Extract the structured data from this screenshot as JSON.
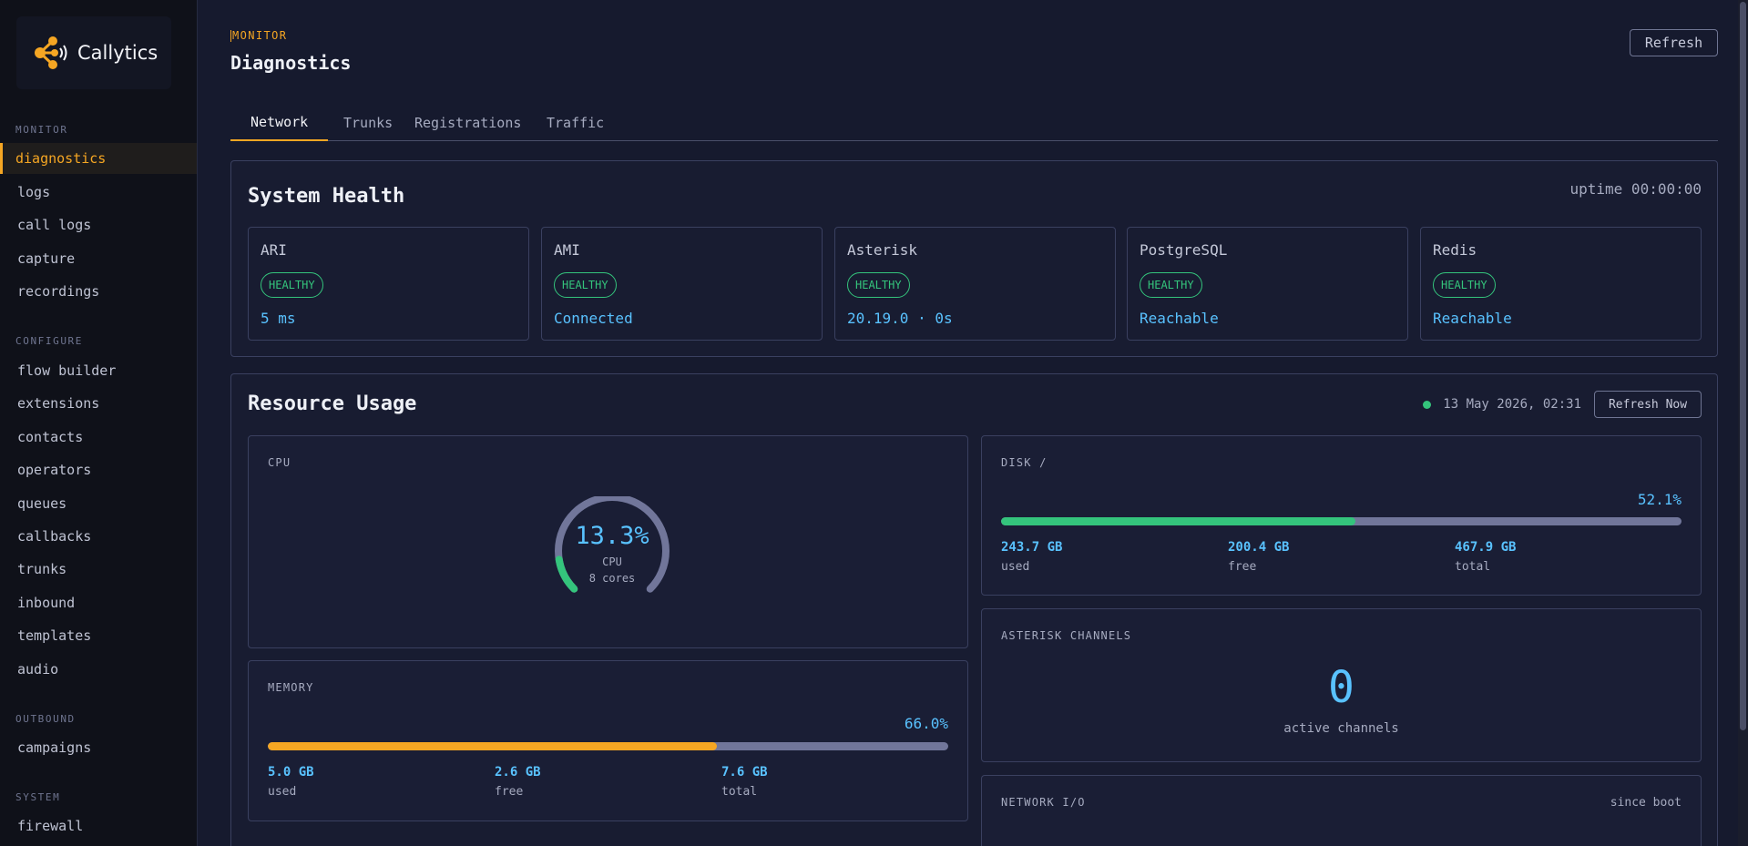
{
  "brand": {
    "name": "Callytics"
  },
  "sidebar": {
    "sections": [
      {
        "label": "MONITOR",
        "items": [
          "diagnostics",
          "logs",
          "call logs",
          "capture",
          "recordings"
        ]
      },
      {
        "label": "CONFIGURE",
        "items": [
          "flow builder",
          "extensions",
          "contacts",
          "operators",
          "queues",
          "callbacks",
          "trunks",
          "inbound",
          "templates",
          "audio"
        ]
      },
      {
        "label": "OUTBOUND",
        "items": [
          "campaigns"
        ]
      },
      {
        "label": "SYSTEM",
        "items": [
          "firewall"
        ]
      }
    ],
    "active": "diagnostics"
  },
  "header": {
    "eyebrow": "MONITOR",
    "title": "Diagnostics",
    "refresh_label": "Refresh"
  },
  "tabs": [
    {
      "label": "Network",
      "active": true
    },
    {
      "label": "Trunks",
      "active": false
    },
    {
      "label": "Registrations",
      "active": false
    },
    {
      "label": "Traffic",
      "active": false
    }
  ],
  "health": {
    "title": "System Health",
    "uptime": "uptime 00:00:00",
    "services": [
      {
        "name": "ARI",
        "status": "HEALTHY",
        "value": "5 ms"
      },
      {
        "name": "AMI",
        "status": "HEALTHY",
        "value": "Connected"
      },
      {
        "name": "Asterisk",
        "status": "HEALTHY",
        "value": "20.19.0 · 0s"
      },
      {
        "name": "PostgreSQL",
        "status": "HEALTHY",
        "value": "Reachable"
      },
      {
        "name": "Redis",
        "status": "HEALTHY",
        "value": "Reachable"
      }
    ]
  },
  "resources": {
    "title": "Resource Usage",
    "timestamp": "13 May 2026, 02:31",
    "refresh_now_label": "Refresh Now",
    "cpu": {
      "label": "CPU",
      "percent_text": "13.3%",
      "percent": 13.3,
      "sub": "CPU",
      "cores": "8 cores"
    },
    "memory": {
      "label": "MEMORY",
      "percent_text": "66.0%",
      "percent": 66.0,
      "used": "5.0 GB",
      "free": "2.6 GB",
      "total": "7.6 GB",
      "used_lbl": "used",
      "free_lbl": "free",
      "total_lbl": "total"
    },
    "disk": {
      "label": "DISK /",
      "percent_text": "52.1%",
      "percent": 52.1,
      "used": "243.7 GB",
      "free": "200.4 GB",
      "total": "467.9 GB",
      "used_lbl": "used",
      "free_lbl": "free",
      "total_lbl": "total"
    },
    "channels": {
      "label": "ASTERISK CHANNELS",
      "value": "0",
      "sub": "active channels"
    },
    "network": {
      "label": "NETWORK I/O",
      "note": "since boot"
    }
  },
  "colors": {
    "accent": "#f5a623",
    "healthy": "#34c47c",
    "value": "#59c2ff",
    "track": "#71769a"
  }
}
